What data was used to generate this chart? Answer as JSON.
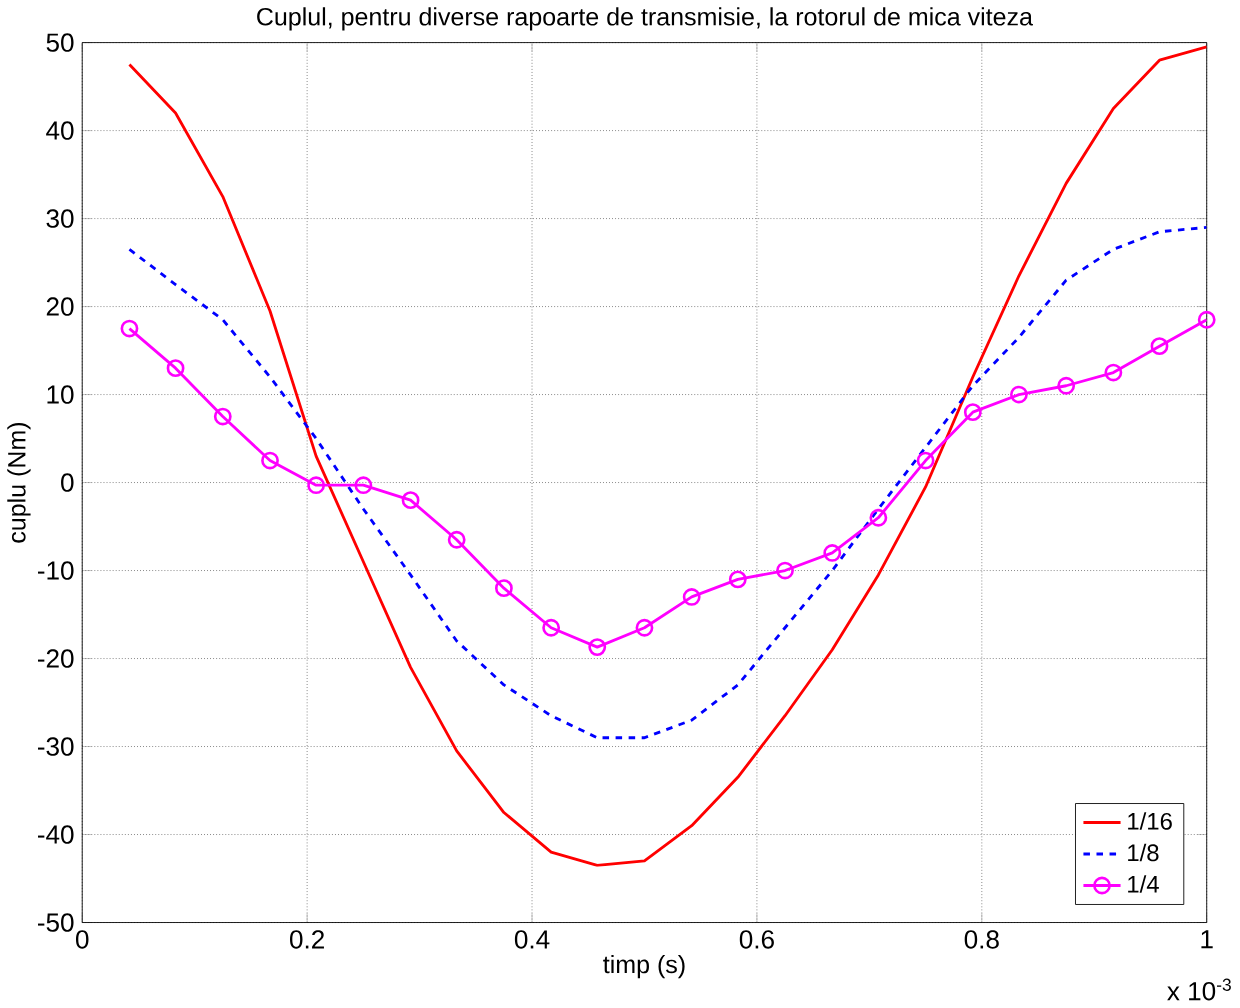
{
  "chart_data": {
    "type": "line",
    "title": "Cuplul, pentru diverse rapoarte de transmisie, la rotorul de mica viteza",
    "xlabel": "timp (s)",
    "ylabel": "cuplu (Nm)",
    "x": [
      0.042,
      0.083,
      0.125,
      0.167,
      0.208,
      0.25,
      0.292,
      0.333,
      0.375,
      0.417,
      0.458,
      0.5,
      0.542,
      0.583,
      0.625,
      0.667,
      0.708,
      0.75,
      0.792,
      0.833,
      0.875,
      0.917,
      0.958,
      1.0
    ],
    "series": [
      {
        "name": "1/16",
        "color": "#ff0000",
        "line_style": "solid",
        "marker": "none",
        "values": [
          47.5,
          42,
          32.5,
          19.5,
          3,
          -9,
          -21,
          -30.5,
          -37.5,
          -42,
          -43.5,
          -43,
          -39,
          -33.5,
          -26.5,
          -19,
          -10.5,
          -0.5,
          12,
          23.5,
          34,
          42.5,
          48,
          49.5
        ]
      },
      {
        "name": "1/8",
        "color": "#0000ff",
        "line_style": "dashed",
        "marker": "none",
        "values": [
          26.5,
          22.5,
          18.5,
          12,
          5,
          -3,
          -10.5,
          -18,
          -23,
          -26.5,
          -29,
          -29,
          -27,
          -23,
          -16.5,
          -10,
          -3,
          4,
          11,
          16.5,
          23,
          26.5,
          28.5,
          29
        ]
      },
      {
        "name": "1/4",
        "color": "#ff00ff",
        "line_style": "solid",
        "marker": "circle",
        "values": [
          17.5,
          13,
          7.5,
          2.5,
          -0.3,
          -0.3,
          -2,
          -6.5,
          -12,
          -16.5,
          -18.7,
          -16.5,
          -13,
          -11,
          -10,
          -8,
          -4,
          2.5,
          8,
          10,
          11,
          12.5,
          15.5,
          18.5
        ]
      }
    ],
    "xlim": [
      0,
      1
    ],
    "xticks": [
      0,
      0.2,
      0.4,
      0.6,
      0.8,
      1
    ],
    "ylim": [
      -50,
      50
    ],
    "yticks": [
      -50,
      -40,
      -30,
      -20,
      -10,
      0,
      10,
      20,
      30,
      40,
      50
    ],
    "grid": true,
    "legend": "bottom right",
    "annotations": [
      "x 10$^{-3}$"
    ]
  }
}
